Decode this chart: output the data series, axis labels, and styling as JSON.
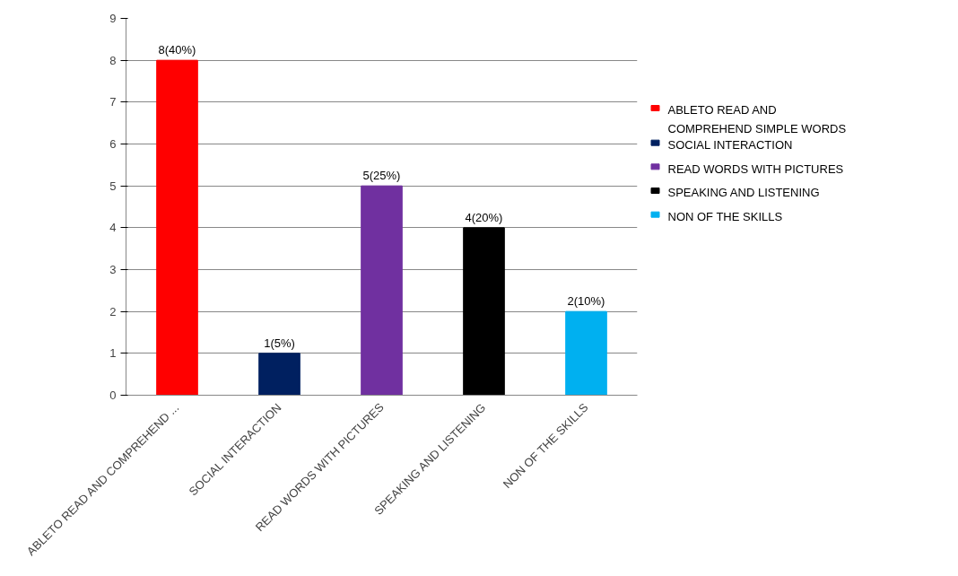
{
  "chart_data": {
    "type": "bar",
    "categories": [
      "ABLETO READ AND COMPREHEND ...",
      "SOCIAL INTERACTION",
      "READ WORDS WITH PICTURES",
      "SPEAKING AND LISTENING",
      "NON OF THE SKILLS"
    ],
    "series": [
      {
        "name": "ABLETO READ AND COMPREHEND SIMPLE WORDS",
        "color": "#ff0000",
        "values": [
          8,
          null,
          null,
          null,
          null
        ],
        "value_labels": [
          "8(40%)",
          null,
          null,
          null,
          null
        ]
      },
      {
        "name": "SOCIAL INTERACTION",
        "color": "#002060",
        "values": [
          null,
          1,
          null,
          null,
          null
        ],
        "value_labels": [
          null,
          "1(5%)",
          null,
          null,
          null
        ]
      },
      {
        "name": "READ WORDS WITH PICTURES",
        "color": "#7030a0",
        "values": [
          null,
          null,
          5,
          null,
          null
        ],
        "value_labels": [
          null,
          null,
          "5(25%)",
          null,
          null
        ]
      },
      {
        "name": "SPEAKING AND LISTENING",
        "color": "#000000",
        "values": [
          null,
          null,
          null,
          4,
          null
        ],
        "value_labels": [
          null,
          null,
          null,
          "4(20%)",
          null
        ]
      },
      {
        "name": "NON OF THE SKILLS",
        "color": "#00b0f0",
        "values": [
          null,
          null,
          null,
          null,
          2
        ],
        "value_labels": [
          null,
          null,
          null,
          null,
          "2(10%)"
        ]
      }
    ],
    "ylim": [
      0,
      9
    ],
    "yticks": [
      0,
      1,
      2,
      3,
      4,
      5,
      6,
      7,
      8,
      9
    ],
    "grid": "y",
    "legend": "right"
  }
}
